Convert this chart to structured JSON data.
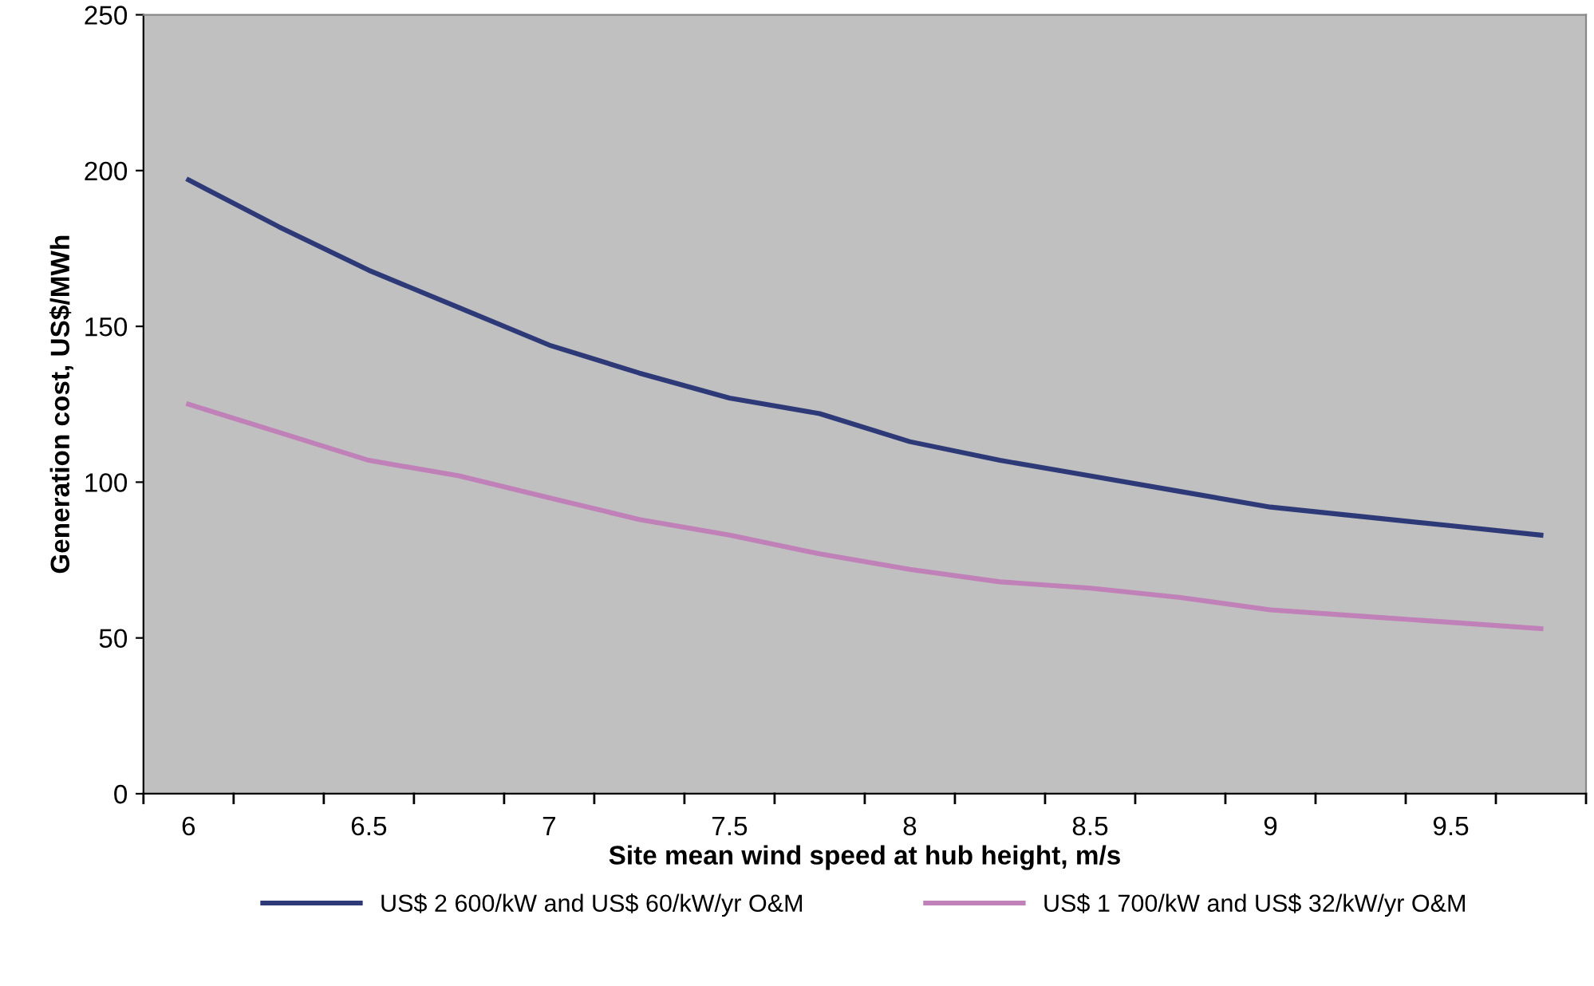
{
  "chart_data": {
    "type": "line",
    "xlabel": "Site mean wind speed at hub height, m/s",
    "ylabel": "Generation cost, US$/MWh",
    "categories": [
      "6",
      null,
      "6.5",
      null,
      "7",
      null,
      "7.5",
      null,
      "8",
      null,
      "8.5",
      null,
      "9",
      null,
      "9.5",
      null
    ],
    "series": [
      {
        "name": "US$ 2 600/kW and US$ 60/kW/yr O&M",
        "color": "#2e3a78",
        "values": [
          197,
          182,
          168,
          156,
          144,
          135,
          127,
          122,
          113,
          107,
          102,
          97,
          92,
          89,
          86,
          83
        ]
      },
      {
        "name": "US$ 1 700/kW and US$ 32/kW/yr O&M",
        "color": "#c080b8",
        "values": [
          125,
          116,
          107,
          102,
          95,
          88,
          83,
          77,
          72,
          68,
          66,
          63,
          59,
          57,
          55,
          53
        ]
      }
    ],
    "ylim": [
      0,
      250
    ],
    "yticks": [
      0,
      50,
      100,
      150,
      200,
      250
    ],
    "grid": false,
    "legend": "bottom",
    "marker": "none",
    "line_style": "solid"
  }
}
